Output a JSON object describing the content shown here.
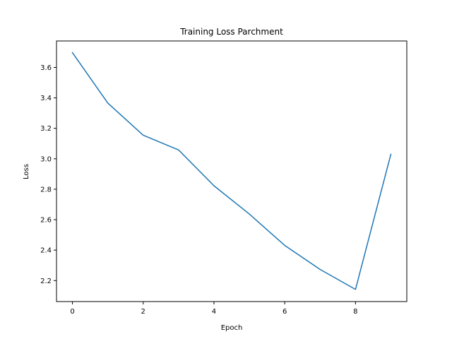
{
  "chart_data": {
    "type": "line",
    "title": "Training Loss Parchment",
    "xlabel": "Epoch",
    "ylabel": "Loss",
    "xlim": [
      -0.45,
      9.45
    ],
    "ylim": [
      2.062,
      3.774
    ],
    "xticks": [
      0,
      2,
      4,
      6,
      8
    ],
    "yticks": [
      2.2,
      2.4,
      2.6,
      2.8,
      3.0,
      3.2,
      3.4,
      3.6
    ],
    "xtick_labels": [
      "0",
      "2",
      "4",
      "6",
      "8"
    ],
    "ytick_labels": [
      "2.2",
      "2.4",
      "2.6",
      "2.8",
      "3.0",
      "3.2",
      "3.4",
      "3.6"
    ],
    "grid": false,
    "series": [
      {
        "color": "#1f77b4",
        "x": [
          0,
          1,
          2,
          3,
          4,
          5,
          6,
          7,
          8,
          9
        ],
        "values": [
          3.697,
          3.366,
          3.155,
          3.058,
          2.823,
          2.637,
          2.431,
          2.273,
          2.142,
          3.03
        ]
      }
    ]
  }
}
